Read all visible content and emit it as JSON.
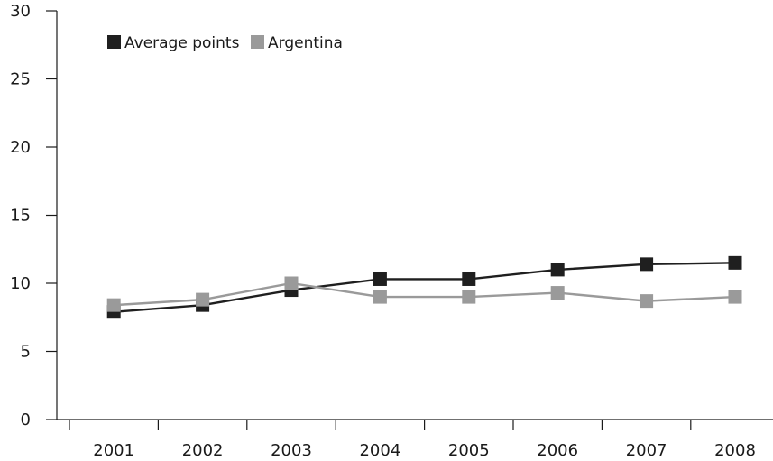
{
  "chart_data": {
    "type": "line",
    "title": "",
    "xlabel": "",
    "ylabel": "",
    "categories": [
      "2001",
      "2002",
      "2003",
      "2004",
      "2005",
      "2006",
      "2007",
      "2008"
    ],
    "ylim": [
      0,
      30
    ],
    "yticks": [
      0,
      5,
      10,
      15,
      20,
      25,
      30
    ],
    "grid": false,
    "legend_position": "top-left",
    "series": [
      {
        "name": "Average points",
        "color": "#1f1f1f",
        "values": [
          7.9,
          8.4,
          9.5,
          10.3,
          10.3,
          11.0,
          11.4,
          11.5
        ]
      },
      {
        "name": "Argentina",
        "color": "#9a9a9a",
        "values": [
          8.4,
          8.8,
          10.0,
          9.0,
          9.0,
          9.3,
          8.7,
          9.0
        ]
      }
    ]
  }
}
